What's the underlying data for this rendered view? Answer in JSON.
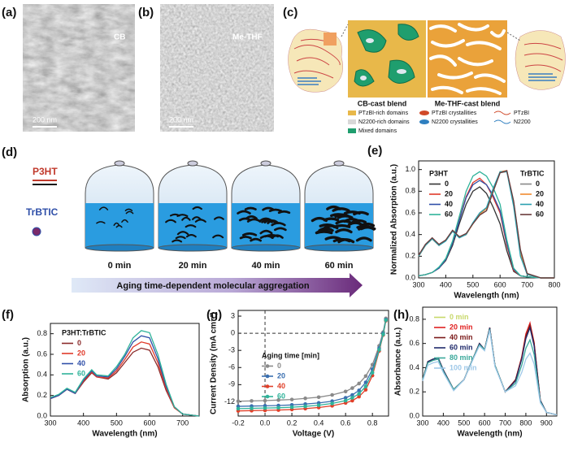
{
  "panel_labels": [
    "(a)",
    "(b)",
    "(c)",
    "(d)",
    "(e)",
    "(f)",
    "(g)",
    "(h)"
  ],
  "images": {
    "a_label": "CB",
    "a_scale": "200 nm",
    "b_label": "Me-THF",
    "b_scale": "200 nm"
  },
  "diagram_c": {
    "left_title": "CB-cast blend",
    "right_title": "Me-THF-cast blend",
    "legend": [
      "PTzBI-rich domains",
      "N2200-rich domains",
      "Mixed domains",
      "PTzBI crystallities",
      "N2200 crystallities",
      "PTzBI",
      "N2200"
    ]
  },
  "diagram_d": {
    "donor": "P3HT",
    "acceptor": "TrBTIC",
    "times": [
      "0 min",
      "20 min",
      "40 min",
      "60 min"
    ],
    "arrow": "Aging time-dependent molecular aggregation"
  },
  "chart_data": [
    {
      "type": "line",
      "x_label": "Wavelength (nm)",
      "y_label": "Normalized Absorption (a.u.)",
      "x": [
        300,
        325,
        350,
        375,
        400,
        425,
        450,
        475,
        500,
        525,
        550,
        575,
        600,
        625,
        650,
        675,
        700,
        750,
        800
      ],
      "xlim": [
        300,
        800
      ],
      "xticks": [
        300,
        400,
        500,
        600,
        700,
        800
      ],
      "ylim": [
        0,
        1.08
      ],
      "yticks": [
        {
          "value": 0,
          "label": "0.0"
        },
        0.2,
        0.4,
        0.6,
        0.8,
        {
          "value": 1,
          "label": "1.0"
        }
      ],
      "series_groups": [
        {
          "name": "P3HT",
          "series": [
            {
              "name": "0",
              "color": "#333333",
              "values": [
                0.02,
                0.03,
                0.05,
                0.09,
                0.16,
                0.3,
                0.5,
                0.68,
                0.8,
                0.84,
                0.78,
                0.65,
                0.5,
                0.25,
                0.06,
                0.02,
                0.01,
                0,
                0
              ]
            },
            {
              "name": "20",
              "color": "#e03a2a",
              "values": [
                0.02,
                0.03,
                0.05,
                0.09,
                0.17,
                0.32,
                0.54,
                0.75,
                0.88,
                0.92,
                0.86,
                0.74,
                0.6,
                0.3,
                0.07,
                0.02,
                0.01,
                0,
                0
              ]
            },
            {
              "name": "40",
              "color": "#2f4fa8",
              "values": [
                0.02,
                0.03,
                0.05,
                0.09,
                0.17,
                0.32,
                0.53,
                0.74,
                0.86,
                0.9,
                0.86,
                0.76,
                0.62,
                0.32,
                0.08,
                0.02,
                0.01,
                0,
                0
              ]
            },
            {
              "name": "60",
              "color": "#2fb39a",
              "values": [
                0.02,
                0.03,
                0.05,
                0.1,
                0.18,
                0.34,
                0.57,
                0.8,
                0.94,
                0.98,
                0.94,
                0.83,
                0.68,
                0.35,
                0.09,
                0.02,
                0.01,
                0,
                0
              ]
            }
          ]
        },
        {
          "name": "TrBTIC",
          "series": [
            {
              "name": "0",
              "color": "#888888",
              "values": [
                0.2,
                0.3,
                0.37,
                0.3,
                0.35,
                0.44,
                0.38,
                0.4,
                0.5,
                0.58,
                0.62,
                0.8,
                0.97,
                0.98,
                0.7,
                0.25,
                0.04,
                0,
                0
              ]
            },
            {
              "name": "20",
              "color": "#f08a30",
              "values": [
                0.2,
                0.3,
                0.36,
                0.3,
                0.35,
                0.43,
                0.38,
                0.4,
                0.5,
                0.59,
                0.64,
                0.82,
                0.98,
                0.99,
                0.68,
                0.22,
                0.03,
                0,
                0
              ]
            },
            {
              "name": "40",
              "color": "#2aa0b0",
              "values": [
                0.2,
                0.3,
                0.36,
                0.3,
                0.34,
                0.43,
                0.37,
                0.4,
                0.51,
                0.6,
                0.65,
                0.83,
                0.98,
                0.98,
                0.66,
                0.2,
                0.03,
                0,
                0
              ]
            },
            {
              "name": "60",
              "color": "#6b3a3a",
              "values": [
                0.21,
                0.31,
                0.37,
                0.31,
                0.35,
                0.44,
                0.38,
                0.41,
                0.5,
                0.58,
                0.62,
                0.8,
                0.97,
                0.99,
                0.71,
                0.26,
                0.04,
                0,
                0
              ]
            }
          ]
        }
      ]
    },
    {
      "type": "line",
      "x_label": "Wavelength (nm)",
      "y_label": "Absorption (a.u.)",
      "legend_title": "P3HT:TrBTIC",
      "x": [
        300,
        325,
        350,
        375,
        400,
        425,
        440,
        475,
        500,
        525,
        550,
        575,
        600,
        625,
        650,
        675,
        700,
        750
      ],
      "xlim": [
        300,
        750
      ],
      "xticks": [
        300,
        400,
        500,
        600,
        700
      ],
      "ylim": [
        0,
        0.9
      ],
      "yticks": [
        {
          "value": 0,
          "label": "0.0"
        },
        0.2,
        0.4,
        0.6,
        0.8
      ],
      "series": [
        {
          "name": "0",
          "color": "#8b2a2a",
          "values": [
            0.17,
            0.2,
            0.26,
            0.22,
            0.33,
            0.42,
            0.38,
            0.36,
            0.42,
            0.52,
            0.62,
            0.66,
            0.64,
            0.48,
            0.25,
            0.08,
            0.02,
            0
          ]
        },
        {
          "name": "20",
          "color": "#e03a2a",
          "values": [
            0.17,
            0.2,
            0.26,
            0.22,
            0.34,
            0.43,
            0.38,
            0.37,
            0.44,
            0.55,
            0.67,
            0.72,
            0.7,
            0.52,
            0.27,
            0.08,
            0.02,
            0
          ]
        },
        {
          "name": "40",
          "color": "#2f4fa8",
          "values": [
            0.17,
            0.2,
            0.26,
            0.22,
            0.35,
            0.44,
            0.39,
            0.38,
            0.46,
            0.58,
            0.72,
            0.78,
            0.76,
            0.56,
            0.29,
            0.09,
            0.02,
            0
          ]
        },
        {
          "name": "60",
          "color": "#2fb39a",
          "values": [
            0.18,
            0.21,
            0.27,
            0.23,
            0.36,
            0.45,
            0.4,
            0.39,
            0.48,
            0.6,
            0.76,
            0.83,
            0.81,
            0.6,
            0.31,
            0.09,
            0.02,
            0
          ]
        }
      ]
    },
    {
      "type": "line",
      "markers": true,
      "x_label": "Voltage (V)",
      "y_label": "Current Density (mA cm⁻²)",
      "legend_title": "Aging time [min]",
      "x": [
        -0.2,
        -0.1,
        0,
        0.1,
        0.2,
        0.3,
        0.4,
        0.5,
        0.6,
        0.65,
        0.7,
        0.75,
        0.8,
        0.85,
        0.88,
        0.9
      ],
      "xlim": [
        -0.2,
        0.92
      ],
      "xticks": [
        -0.2,
        {
          "value": 0,
          "label": "0.0"
        },
        0.2,
        0.4,
        0.6,
        0.8
      ],
      "ylim": [
        -14.5,
        4
      ],
      "yticks": [
        -12,
        -9,
        -6,
        -3,
        0,
        3
      ],
      "series": [
        {
          "name": "0",
          "color": "#8a8a8a",
          "values": [
            -11.9,
            -11.85,
            -11.8,
            -11.7,
            -11.6,
            -11.4,
            -11.2,
            -10.8,
            -10.2,
            -9.6,
            -8.8,
            -7.5,
            -5.5,
            -2.2,
            0.2,
            2.6
          ]
        },
        {
          "name": "20",
          "color": "#3a6fb0",
          "values": [
            -12.8,
            -12.75,
            -12.7,
            -12.65,
            -12.55,
            -12.4,
            -12.2,
            -11.9,
            -11.3,
            -10.8,
            -10,
            -8.6,
            -6.3,
            -2.6,
            0,
            2.4
          ]
        },
        {
          "name": "40",
          "color": "#e0402a",
          "values": [
            -13.6,
            -13.55,
            -13.5,
            -13.45,
            -13.35,
            -13.2,
            -13,
            -12.7,
            -12.2,
            -11.8,
            -11.1,
            -9.9,
            -7.4,
            -3.1,
            -0.3,
            2.2
          ]
        },
        {
          "name": "60",
          "color": "#2fb39a",
          "values": [
            -13.2,
            -13.15,
            -13.1,
            -13.05,
            -12.95,
            -12.8,
            -12.6,
            -12.3,
            -11.8,
            -11.3,
            -10.6,
            -9.3,
            -6.9,
            -2.9,
            -0.2,
            2.3
          ]
        }
      ]
    },
    {
      "type": "line",
      "x_label": "Wavelength (nm)",
      "y_label": "Absorbance (a.u.)",
      "x": [
        300,
        325,
        350,
        375,
        400,
        450,
        500,
        550,
        575,
        600,
        625,
        650,
        700,
        750,
        780,
        800,
        820,
        840,
        870,
        900,
        950
      ],
      "xlim": [
        300,
        950
      ],
      "xticks": [
        300,
        400,
        500,
        600,
        700,
        800,
        900
      ],
      "ylim": [
        0,
        0.9
      ],
      "yticks": [
        {
          "value": 0,
          "label": "0.0"
        },
        0.2,
        0.4,
        0.6,
        0.8
      ],
      "series": [
        {
          "name": "0 min",
          "color": "#c8d86a",
          "values": [
            0.3,
            0.45,
            0.47,
            0.48,
            0.38,
            0.22,
            0.3,
            0.5,
            0.6,
            0.55,
            0.73,
            0.42,
            0.2,
            0.3,
            0.48,
            0.66,
            0.76,
            0.6,
            0.13,
            0.03,
            0.01
          ]
        },
        {
          "name": "20 min",
          "color": "#e02020",
          "values": [
            0.3,
            0.45,
            0.47,
            0.48,
            0.38,
            0.22,
            0.3,
            0.5,
            0.6,
            0.55,
            0.73,
            0.42,
            0.2,
            0.3,
            0.49,
            0.68,
            0.77,
            0.61,
            0.13,
            0.03,
            0.01
          ]
        },
        {
          "name": "40 min",
          "color": "#7a1a1a",
          "values": [
            0.3,
            0.45,
            0.47,
            0.48,
            0.38,
            0.22,
            0.3,
            0.5,
            0.6,
            0.55,
            0.73,
            0.42,
            0.2,
            0.3,
            0.48,
            0.66,
            0.75,
            0.6,
            0.13,
            0.03,
            0.01
          ]
        },
        {
          "name": "60 min",
          "color": "#1f2a6b",
          "values": [
            0.3,
            0.45,
            0.47,
            0.48,
            0.38,
            0.22,
            0.3,
            0.5,
            0.6,
            0.55,
            0.73,
            0.42,
            0.2,
            0.29,
            0.47,
            0.64,
            0.73,
            0.58,
            0.13,
            0.03,
            0.01
          ]
        },
        {
          "name": "80 min",
          "color": "#3aa89a",
          "values": [
            0.3,
            0.44,
            0.46,
            0.47,
            0.37,
            0.22,
            0.3,
            0.5,
            0.59,
            0.55,
            0.72,
            0.42,
            0.2,
            0.27,
            0.42,
            0.56,
            0.63,
            0.51,
            0.12,
            0.03,
            0.01
          ]
        },
        {
          "name": "100 min",
          "color": "#9ec8e8",
          "values": [
            0.29,
            0.42,
            0.44,
            0.45,
            0.36,
            0.21,
            0.3,
            0.49,
            0.58,
            0.54,
            0.71,
            0.41,
            0.2,
            0.25,
            0.36,
            0.47,
            0.52,
            0.43,
            0.11,
            0.03,
            0.01
          ]
        }
      ]
    }
  ]
}
